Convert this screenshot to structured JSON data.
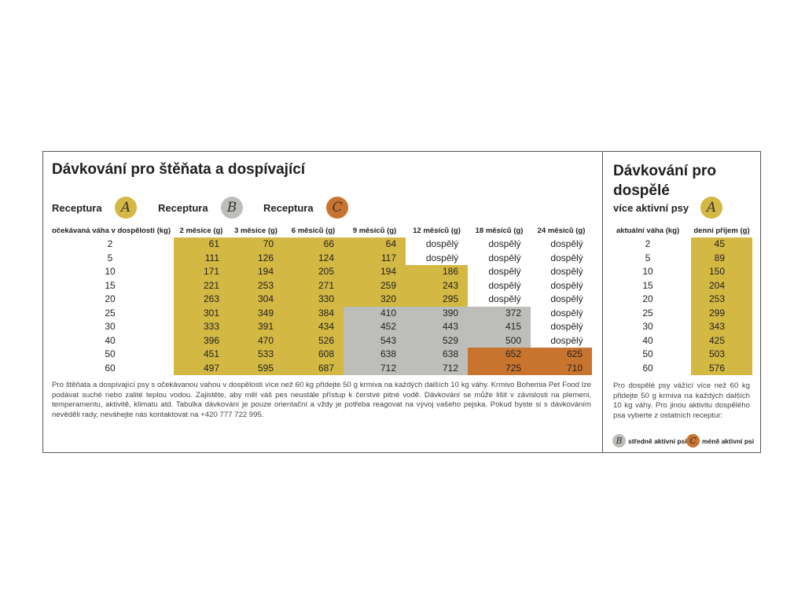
{
  "left": {
    "title": "Dávkování pro štěňata a dospívající",
    "recipes": [
      {
        "label": "Receptura",
        "letter": "A",
        "color": "#d3b844"
      },
      {
        "label": "Receptura",
        "letter": "B",
        "color": "#bdbdb9"
      },
      {
        "label": "Receptura",
        "letter": "C",
        "color": "#c8742f"
      }
    ],
    "table": {
      "header": [
        "očekávaná váha v dospělosti (kg)",
        "2 měsíce (g)",
        "3 měsíce (g)",
        "6 měsíců (g)",
        "9 měsíců (g)",
        "12 měsíců (g)",
        "18 měsíců (g)",
        "24 měsíců (g)"
      ],
      "rows": [
        [
          2,
          61,
          70,
          66,
          64,
          "dospělý",
          "dospělý",
          "dospělý"
        ],
        [
          5,
          111,
          126,
          124,
          117,
          "dospělý",
          "dospělý",
          "dospělý"
        ],
        [
          10,
          171,
          194,
          205,
          194,
          186,
          "dospělý",
          "dospělý"
        ],
        [
          15,
          221,
          253,
          271,
          259,
          243,
          "dospělý",
          "dospělý"
        ],
        [
          20,
          263,
          304,
          330,
          320,
          295,
          "dospělý",
          "dospělý"
        ],
        [
          25,
          301,
          349,
          384,
          410,
          390,
          372,
          "dospělý"
        ],
        [
          30,
          333,
          391,
          434,
          452,
          443,
          415,
          "dospělý"
        ],
        [
          40,
          396,
          470,
          526,
          543,
          529,
          500,
          "dospělý"
        ],
        [
          50,
          451,
          533,
          608,
          638,
          638,
          652,
          625
        ],
        [
          60,
          497,
          595,
          687,
          712,
          712,
          725,
          710
        ]
      ],
      "row_colors": [
        [
          "#d3b844",
          "#d3b844",
          "#d3b844",
          "#d3b844",
          "#ffffff",
          "#ffffff",
          "#ffffff"
        ],
        [
          "#d3b844",
          "#d3b844",
          "#d3b844",
          "#d3b844",
          "#ffffff",
          "#ffffff",
          "#ffffff"
        ],
        [
          "#d3b844",
          "#d3b844",
          "#d3b844",
          "#d3b844",
          "#d3b844",
          "#ffffff",
          "#ffffff"
        ],
        [
          "#d3b844",
          "#d3b844",
          "#d3b844",
          "#d3b844",
          "#d3b844",
          "#ffffff",
          "#ffffff"
        ],
        [
          "#d3b844",
          "#d3b844",
          "#d3b844",
          "#d3b844",
          "#d3b844",
          "#ffffff",
          "#ffffff"
        ],
        [
          "#d3b844",
          "#d3b844",
          "#d3b844",
          "#bdbdb9",
          "#bdbdb9",
          "#bdbdb9",
          "#ffffff"
        ],
        [
          "#d3b844",
          "#d3b844",
          "#d3b844",
          "#bdbdb9",
          "#bdbdb9",
          "#bdbdb9",
          "#ffffff"
        ],
        [
          "#d3b844",
          "#d3b844",
          "#d3b844",
          "#bdbdb9",
          "#bdbdb9",
          "#bdbdb9",
          "#ffffff"
        ],
        [
          "#d3b844",
          "#d3b844",
          "#d3b844",
          "#bdbdb9",
          "#bdbdb9",
          "#c8742f",
          "#c8742f"
        ],
        [
          "#d3b844",
          "#d3b844",
          "#d3b844",
          "#bdbdb9",
          "#bdbdb9",
          "#c8742f",
          "#c8742f"
        ]
      ]
    },
    "note": "Pro štěňata a dospívající psy s očekávanou vahou v dospělosti více než 60 kg přidejte 50 g krmiva na každých dalších 10 kg váhy. Krmivo Bohemia Pet Food lze podávat suché nebo zalité teplou vodou. Zajistěte, aby měl váš pes neustále přístup k čerstvé pitné vodě. Dávkování se může lišit v závislosti na plemeni, temperamentu, aktivitě, klimatu atd. Tabulka dávkování je pouze orientační a vždy je potřeba reagovat na vývoj vašeho pejska. Pokud byste si s dávkováním nevěděli rady, neváhejte nás kontaktovat na +420 777 722 995."
  },
  "right": {
    "title": "Dávkování pro dospělé",
    "subtitle": "více aktivní psy",
    "table": {
      "header": [
        "aktuální váha (kg)",
        "denní příjem (g)"
      ],
      "rows": [
        [
          2,
          45
        ],
        [
          5,
          89
        ],
        [
          10,
          150
        ],
        [
          15,
          204
        ],
        [
          20,
          253
        ],
        [
          25,
          299
        ],
        [
          30,
          343
        ],
        [
          40,
          425
        ],
        [
          50,
          503
        ],
        [
          60,
          576
        ]
      ]
    },
    "note": "Pro dospělé psy vážící více než 60 kg přidejte 50 g krmiva na každých dalších 10 kg váhy. Pro jinou aktivitu dospělého psa vyberte z ostatních receptur:",
    "legend": [
      "středně aktivní psi",
      "méně aktivní psi"
    ]
  }
}
